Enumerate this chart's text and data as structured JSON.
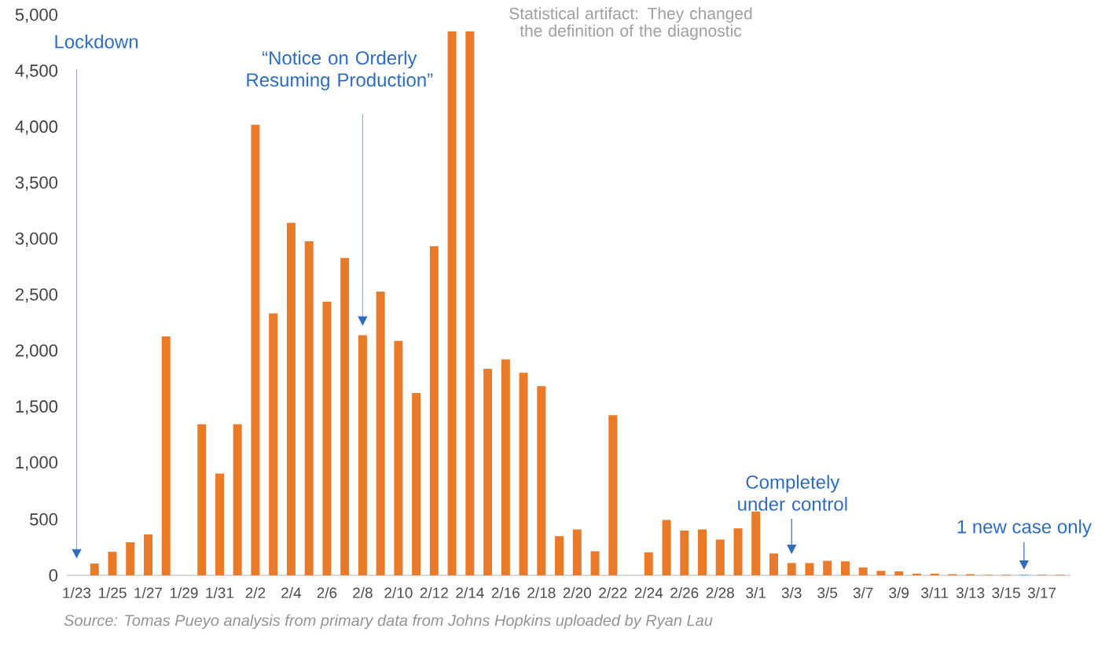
{
  "chart_data": {
    "type": "bar",
    "categories": [
      "1/23",
      null,
      "1/25",
      null,
      "1/27",
      null,
      "1/29",
      null,
      "1/31",
      null,
      "2/2",
      null,
      "2/4",
      null,
      "2/6",
      null,
      "2/8",
      null,
      "2/10",
      null,
      "2/12",
      null,
      "2/14",
      null,
      "2/16",
      null,
      "2/18",
      null,
      "2/20",
      null,
      "2/22",
      null,
      "2/24",
      null,
      "2/26",
      null,
      "2/28",
      null,
      "3/1",
      null,
      "3/3",
      null,
      "3/5",
      null,
      "3/7",
      null,
      "3/9",
      null,
      "3/11",
      null,
      "3/13",
      null,
      "3/15",
      null,
      "3/17",
      null
    ],
    "values": [
      0,
      105,
      210,
      295,
      365,
      2135,
      0,
      1350,
      910,
      1350,
      4025,
      2340,
      3150,
      2985,
      2445,
      2835,
      2145,
      2535,
      2095,
      1630,
      2940,
      4860,
      4860,
      1845,
      1930,
      1810,
      1690,
      350,
      410,
      215,
      1430,
      0,
      205,
      495,
      400,
      410,
      320,
      420,
      570,
      195,
      110,
      110,
      130,
      125,
      70,
      40,
      35,
      15,
      15,
      10,
      10,
      5,
      5,
      5,
      5,
      5
    ],
    "color": "#e87a2a",
    "ylim": [
      0,
      5000
    ],
    "yticks": [
      0,
      500,
      {
        "value": 1000,
        "label": "1,000"
      },
      {
        "value": 1500,
        "label": "1,500"
      },
      {
        "value": 2000,
        "label": "2,000"
      },
      {
        "value": 2500,
        "label": "2,500"
      },
      {
        "value": 3000,
        "label": "3,000"
      },
      {
        "value": 3500,
        "label": "3,500"
      },
      {
        "value": 4000,
        "label": "4,000"
      },
      {
        "value": 4500,
        "label": "4,500"
      },
      {
        "value": 5000,
        "label": "5,000"
      }
    ],
    "annotations": [
      "Lockdown",
      "“Notice on Orderly Resuming Production”",
      "Completely under control",
      "1 new case only",
      "Statistical artifact: They changed the definition of the diagnostic",
      "Source: Tomas Pueyo analysis from primary data from Johns Hopkins uploaded by Ryan Lau"
    ]
  }
}
